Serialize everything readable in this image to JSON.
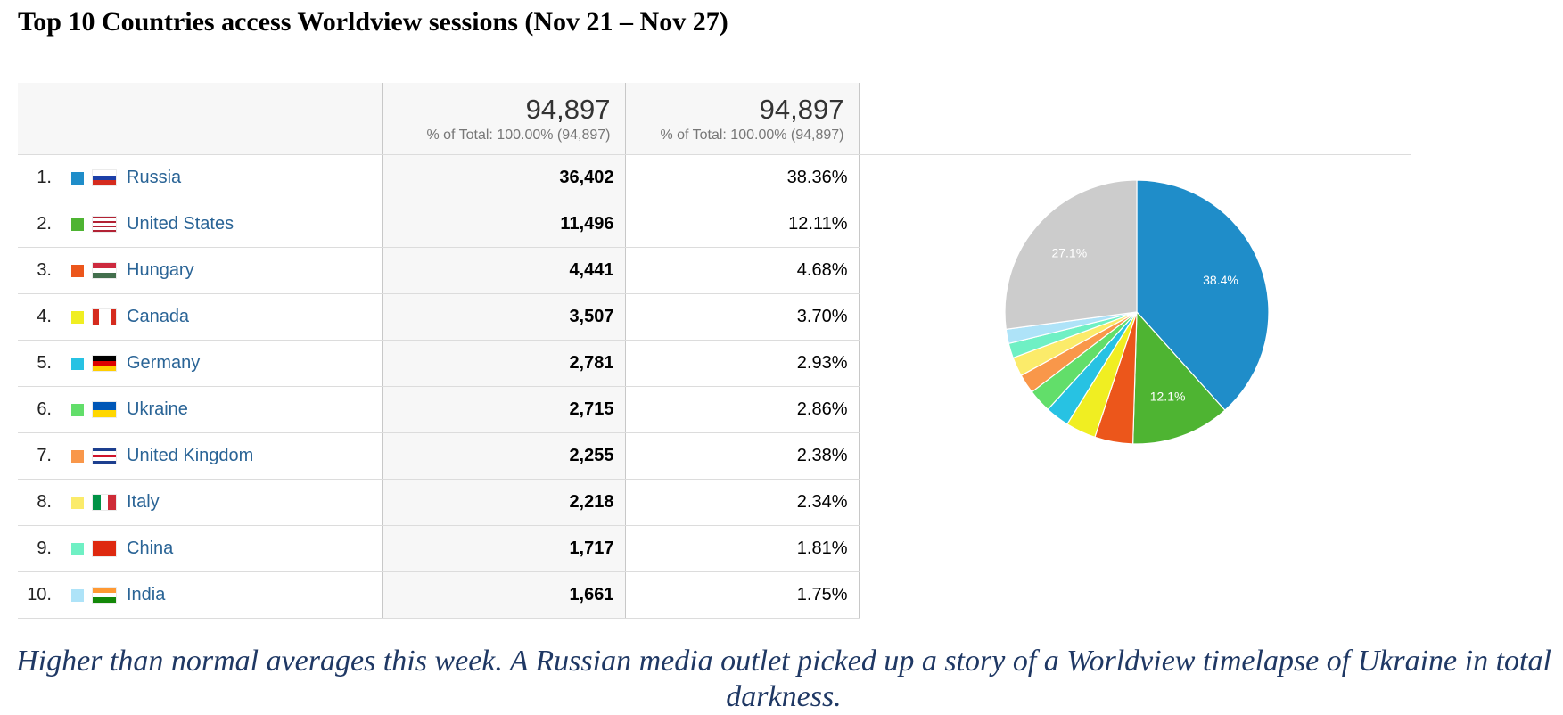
{
  "title": "Top 10 Countries access Worldview sessions (Nov 21 – Nov 27)",
  "totals": [
    {
      "value": "94,897",
      "sub": "% of Total: 100.00% (94,897)"
    },
    {
      "value": "94,897",
      "sub": "% of Total: 100.00% (94,897)"
    }
  ],
  "rows": [
    {
      "rank": "1.",
      "country": "Russia",
      "sessions": "36,402",
      "percent": "38.36%",
      "color": "#1f8dc9",
      "flag": "russia-flag-icon"
    },
    {
      "rank": "2.",
      "country": "United States",
      "sessions": "11,496",
      "percent": "12.11%",
      "color": "#4eb432",
      "flag": "usa-flag-icon"
    },
    {
      "rank": "3.",
      "country": "Hungary",
      "sessions": "4,441",
      "percent": "4.68%",
      "color": "#ec561b",
      "flag": "hungary-flag-icon"
    },
    {
      "rank": "4.",
      "country": "Canada",
      "sessions": "3,507",
      "percent": "3.70%",
      "color": "#f0ee22",
      "flag": "canada-flag-icon"
    },
    {
      "rank": "5.",
      "country": "Germany",
      "sessions": "2,781",
      "percent": "2.93%",
      "color": "#27c2e3",
      "flag": "germany-flag-icon"
    },
    {
      "rank": "6.",
      "country": "Ukraine",
      "sessions": "2,715",
      "percent": "2.86%",
      "color": "#62de6a",
      "flag": "ukraine-flag-icon"
    },
    {
      "rank": "7.",
      "country": "United Kingdom",
      "sessions": "2,255",
      "percent": "2.38%",
      "color": "#f9974a",
      "flag": "uk-flag-icon"
    },
    {
      "rank": "8.",
      "country": "Italy",
      "sessions": "2,218",
      "percent": "2.34%",
      "color": "#fbeb6a",
      "flag": "italy-flag-icon"
    },
    {
      "rank": "9.",
      "country": "China",
      "sessions": "1,717",
      "percent": "1.81%",
      "color": "#6ff0c4",
      "flag": "china-flag-icon"
    },
    {
      "rank": "10.",
      "country": "India",
      "sessions": "1,661",
      "percent": "1.75%",
      "color": "#aee3f8",
      "flag": "india-flag-icon"
    }
  ],
  "chart_data": {
    "type": "pie",
    "labels": [
      "Russia",
      "United States",
      "Hungary",
      "Canada",
      "Germany",
      "Ukraine",
      "United Kingdom",
      "Italy",
      "China",
      "India",
      "(other)"
    ],
    "values": [
      36402,
      11496,
      4441,
      3507,
      2781,
      2715,
      2255,
      2218,
      1717,
      1661,
      25704
    ],
    "colors": [
      "#1f8dc9",
      "#4eb432",
      "#ec561b",
      "#f0ee22",
      "#27c2e3",
      "#62de6a",
      "#f9974a",
      "#fbeb6a",
      "#6ff0c4",
      "#aee3f8",
      "#cccccc"
    ],
    "slice_labels": [
      "38.4%",
      "12.1%",
      "",
      "",
      "",
      "",
      "",
      "",
      "",
      "",
      "27.1%"
    ]
  },
  "caption": "Higher than normal averages this week.  A Russian media outlet picked up a story of a Worldview timelapse of Ukraine in total darkness."
}
